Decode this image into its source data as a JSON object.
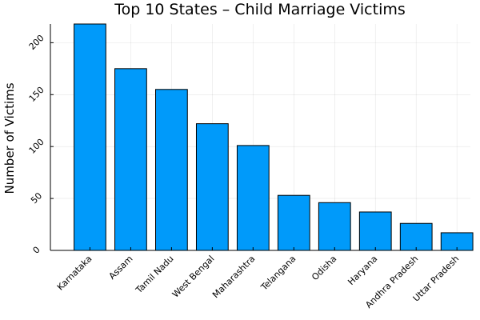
{
  "chart_data": {
    "type": "bar",
    "title": "Top 10 States – Child Marriage Victims",
    "xlabel": "",
    "ylabel": "Number of Victims",
    "categories": [
      "Karnataka",
      "Assam",
      "Tamil Nadu",
      "West Bengal",
      "Maharashtra",
      "Telangana",
      "Odisha",
      "Haryana",
      "Andhra Pradesh",
      "Uttar Pradesh"
    ],
    "values": [
      218,
      175,
      155,
      122,
      101,
      53,
      46,
      37,
      26,
      17
    ],
    "ylim": [
      0,
      218
    ],
    "yticks": [
      0,
      50,
      100,
      150,
      200
    ],
    "grid": true,
    "legend": "none",
    "bar_color": "#009AFA"
  }
}
